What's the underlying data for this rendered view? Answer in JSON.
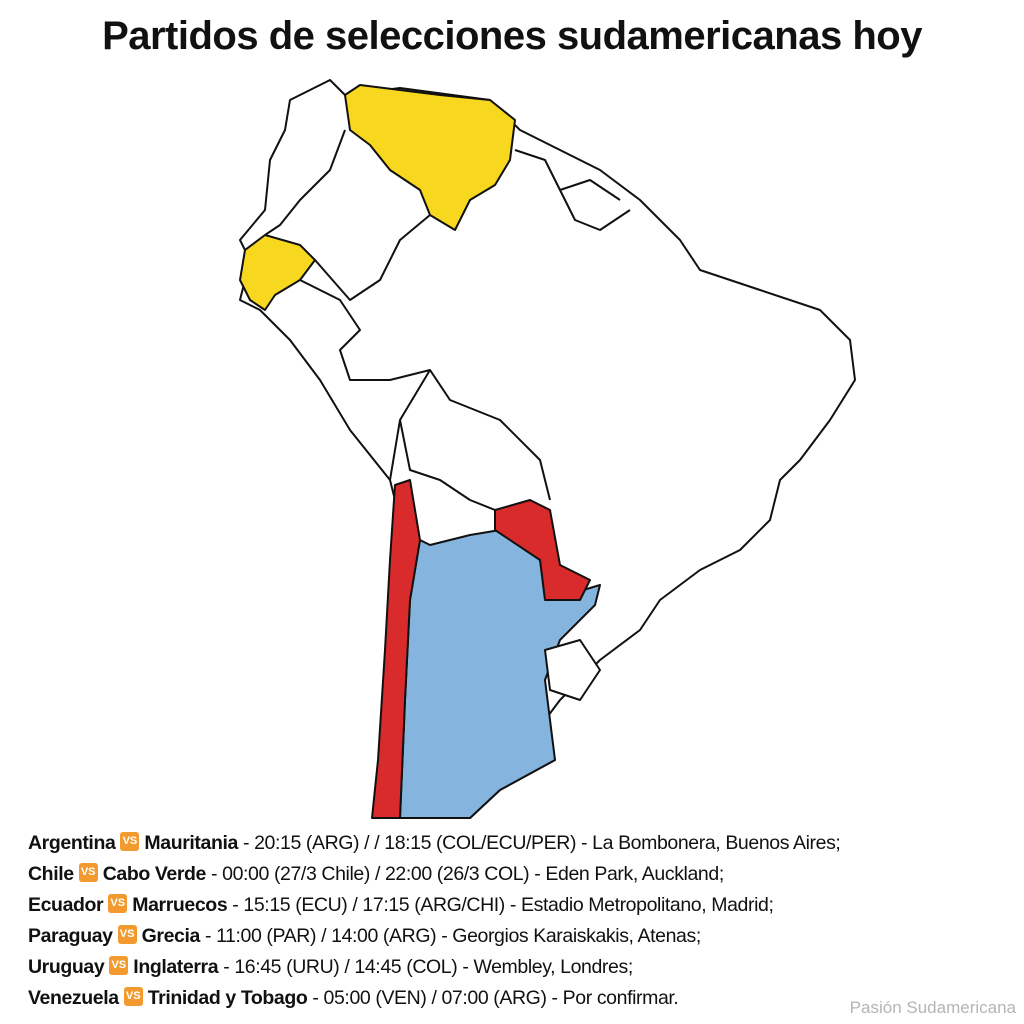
{
  "title": "Partidos de selecciones sudamericanas hoy",
  "vs_icon": "VS",
  "matches": [
    {
      "team": "Argentina",
      "opponent": "Mauritania",
      "details": "- 20:15 (ARG)  / / 18:15 (COL/ECU/PER) - La Bombonera, Buenos Aires;"
    },
    {
      "team": "Chile",
      "opponent": "Cabo Verde",
      "details": "- 00:00 (27/3 Chile) / 22:00 (26/3 COL) - Eden Park, Auckland;"
    },
    {
      "team": "Ecuador",
      "opponent": "Marruecos",
      "details": "- 15:15 (ECU) / 17:15 (ARG/CHI) - Estadio Metropolitano, Madrid;"
    },
    {
      "team": "Paraguay",
      "opponent": "Grecia",
      "details": "- 11:00 (PAR) / 14:00 (ARG) - Georgios Karaiskakis, Atenas;"
    },
    {
      "team": "Uruguay",
      "opponent": "Inglaterra",
      "details": "- 16:45 (URU) / 14:45 (COL) - Wembley, Londres;"
    },
    {
      "team": "Venezuela",
      "opponent": "Trinidad y Tobago",
      "details": "- 05:00 (VEN) / 07:00 (ARG) - Por confirmar."
    }
  ],
  "footer": "Pasión Sudamericana"
}
